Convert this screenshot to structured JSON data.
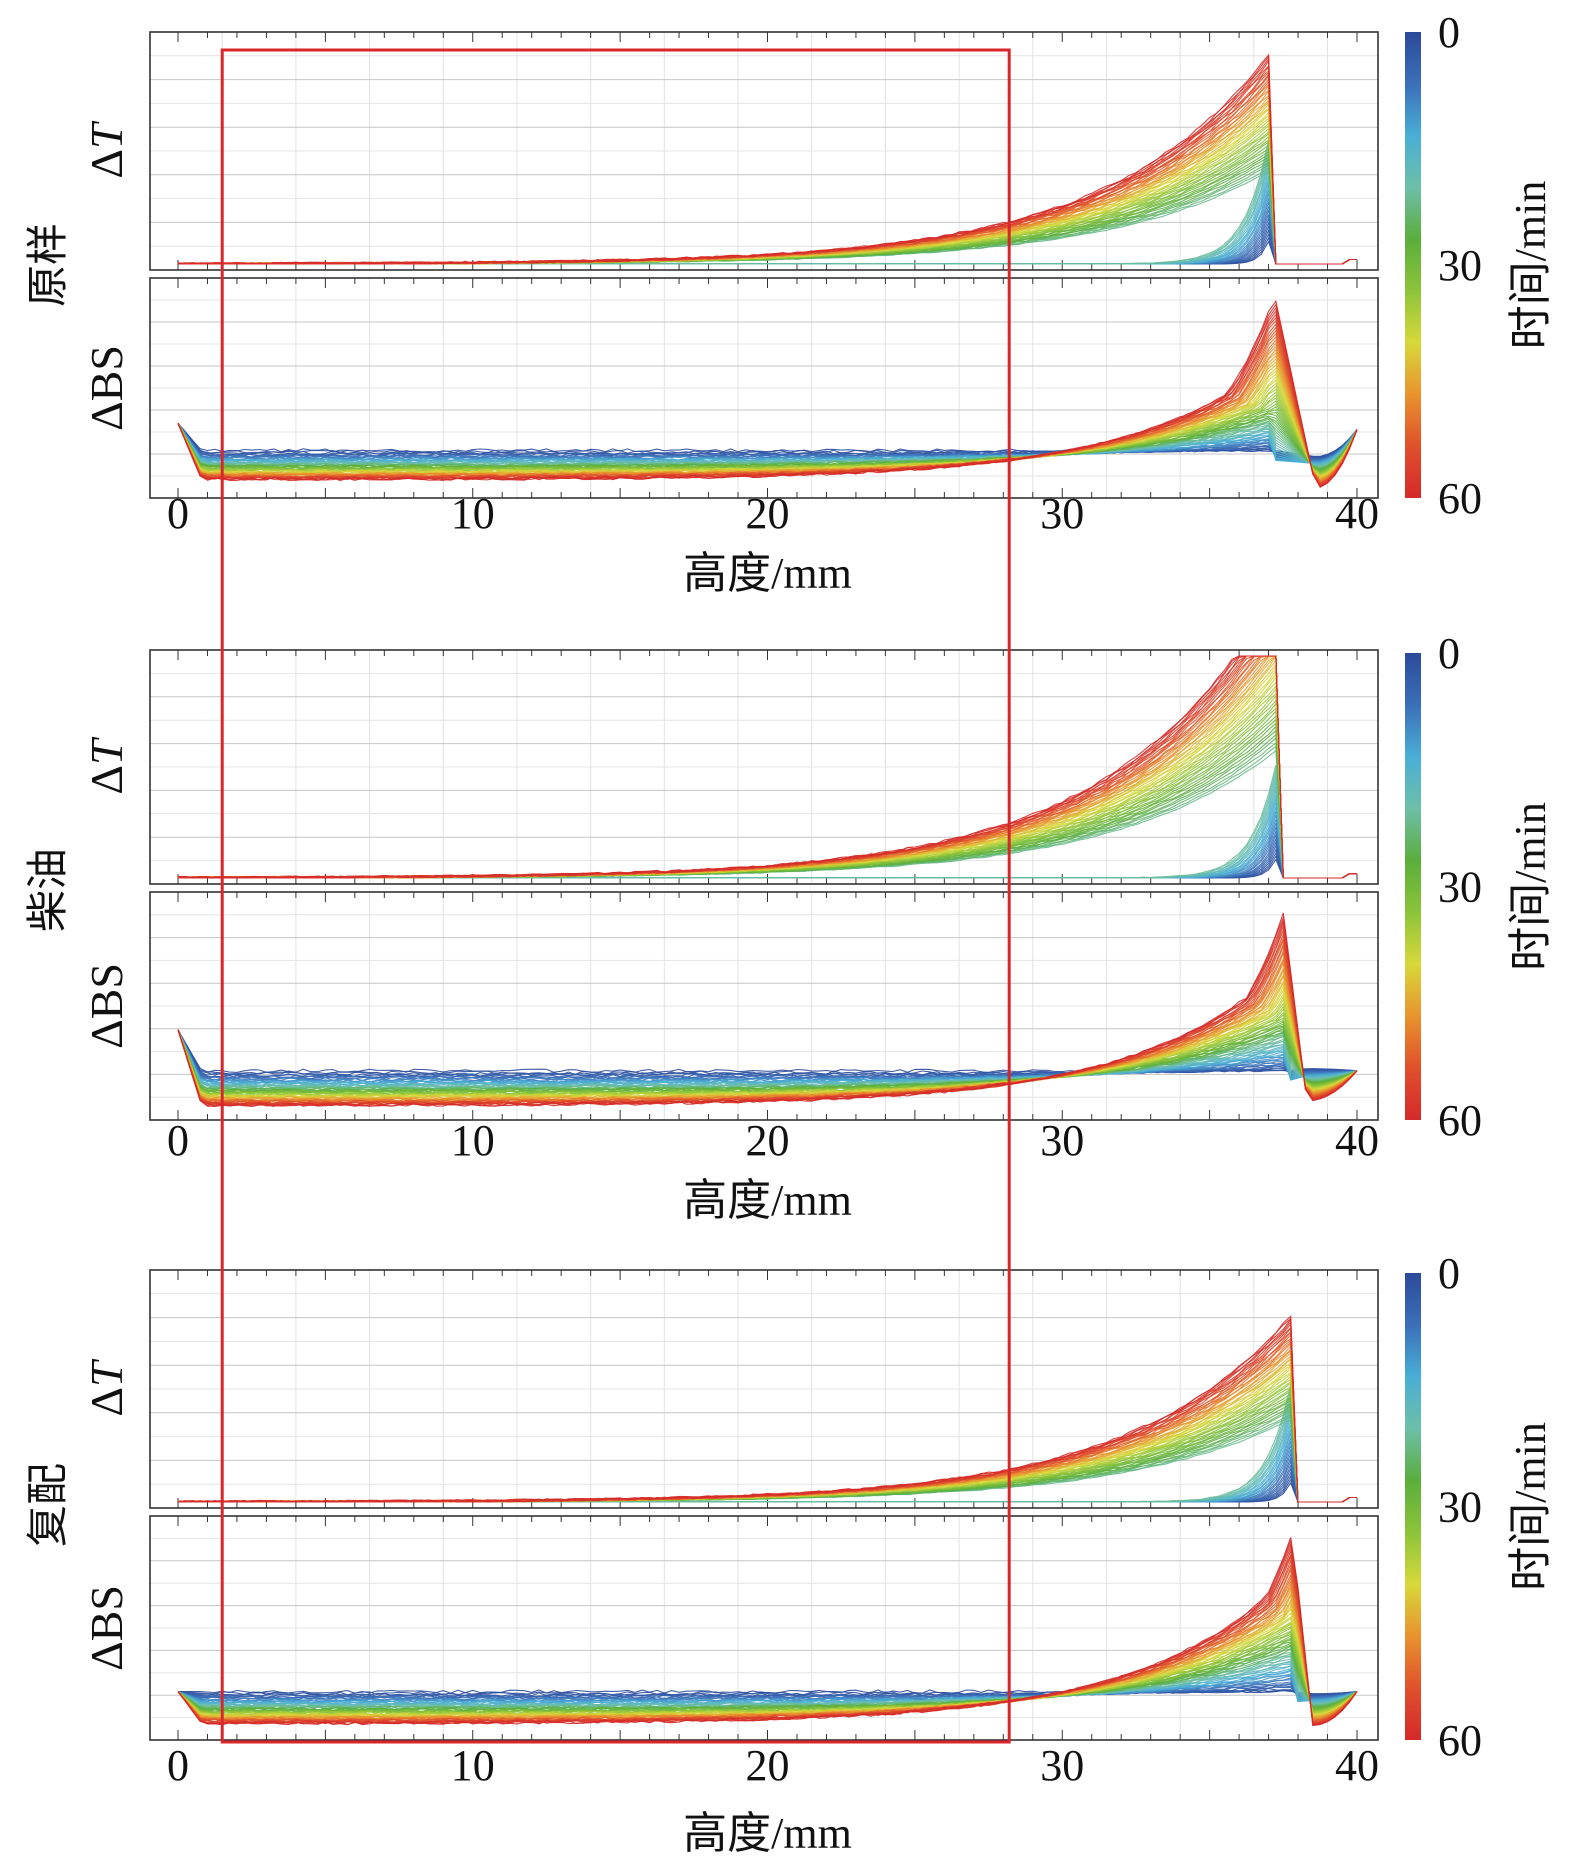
{
  "chart_data": {
    "type": "line",
    "title": "",
    "description": "Turbiscan transmission (ΔT) and backscattering (ΔBS) profiles vs sample height over 0–60 min for three samples",
    "xlabel": "高度/mm",
    "xlim": [
      -1,
      41
    ],
    "xticks": [
      0,
      10,
      20,
      30,
      40
    ],
    "colorbar": {
      "label": "时间/min",
      "ticks": [
        0,
        30,
        60
      ],
      "range": [
        0,
        60
      ],
      "colors": [
        "#2b4a9a",
        "#3b6fb8",
        "#4aaed6",
        "#6dbfa8",
        "#5aae3c",
        "#8cc43a",
        "#d8d83a",
        "#e8932e",
        "#e0502c",
        "#d42a2a"
      ]
    },
    "highlight_box": {
      "x_range_mm": [
        1.5,
        28.2
      ],
      "color": "#d9262b",
      "note": "red rectangle spanning all three panels"
    },
    "panels": [
      {
        "sample": "原样",
        "xlabel": "高度/mm",
        "delta_t": {
          "ylabel": "ΔT",
          "ylim": [
            0,
            1
          ],
          "peak_x_mm": 37.2,
          "peak_value_at_60min": 0.97,
          "value_at_28mm_60min": 0.18,
          "value_at_28mm_30min": 0.06,
          "drop_to_zero_x_mm": 37.6,
          "end_blip_x_mm": 40
        },
        "delta_bs": {
          "ylabel": "ΔBS",
          "ylim": [
            0,
            1
          ],
          "baseline_0min": 0.2,
          "baseline_60min": 0.06,
          "start_spike_value": 0.33,
          "peak_x_mm": 37.2,
          "peak_value_at_60min": 0.95,
          "crossover_x_mm": 28.5,
          "dip_x_mm": 38.6,
          "dip_value": 0.02,
          "end_value": 0.3
        }
      },
      {
        "sample": "柴油",
        "xlabel": "高度/mm",
        "delta_t": {
          "ylabel": "ΔT",
          "ylim": [
            0,
            1
          ],
          "peak_x_mm": 37.5,
          "peak_value_at_60min": 0.96,
          "value_at_28mm_60min": 0.24,
          "value_at_28mm_30min": 0.1,
          "drop_to_zero_x_mm": 37.9,
          "end_blip_x_mm": 40
        },
        "delta_bs": {
          "ylabel": "ΔBS",
          "ylim": [
            0,
            1
          ],
          "baseline_0min": 0.2,
          "baseline_60min": 0.04,
          "start_spike_value": 0.39,
          "peak_x_mm": 37.5,
          "peak_value_at_60min": 0.93,
          "crossover_x_mm": 28.2,
          "dip_x_mm": 38.3,
          "dip_value": 0.06,
          "end_value": 0.2
        }
      },
      {
        "sample": "复配",
        "xlabel": "高度/mm",
        "delta_t": {
          "ylabel": "ΔT",
          "ylim": [
            0,
            1
          ],
          "peak_x_mm": 38.0,
          "peak_value_at_60min": 0.97,
          "value_at_28mm_60min": 0.14,
          "value_at_28mm_30min": 0.05,
          "drop_to_zero_x_mm": 38.3,
          "end_blip_x_mm": 40
        },
        "delta_bs": {
          "ylabel": "ΔBS",
          "ylim": [
            0,
            1
          ],
          "baseline_0min": 0.2,
          "baseline_60min": 0.05,
          "start_spike_value": 0.2,
          "peak_x_mm": 37.8,
          "peak_value_at_60min": 0.95,
          "crossover_x_mm": 28.0,
          "dip_x_mm": 38.5,
          "dip_value": 0.04,
          "end_value": 0.2
        }
      }
    ]
  }
}
